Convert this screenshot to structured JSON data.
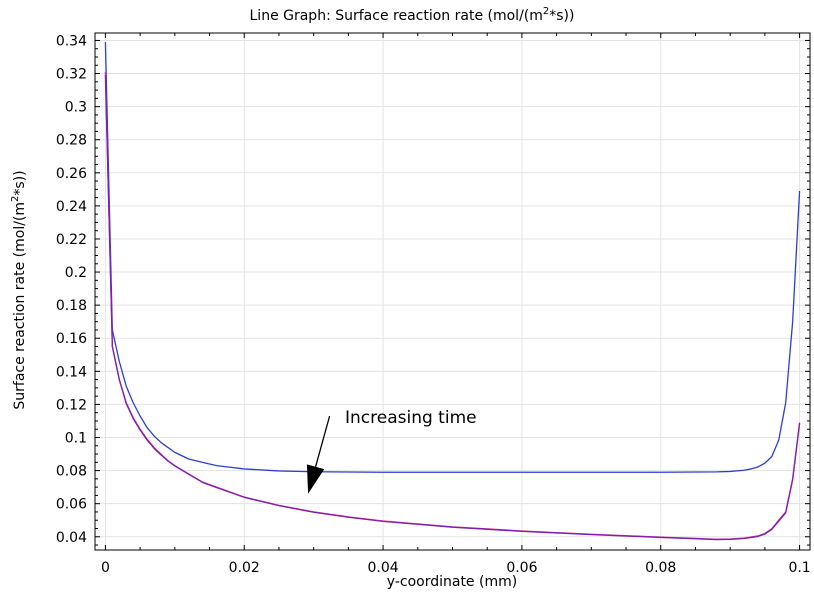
{
  "chart_data": {
    "type": "line",
    "title_main": "Line Graph: Surface reaction rate (mol/(m",
    "title_sup": "2",
    "title_tail": "*s))",
    "xlabel": "y-coordinate (mm)",
    "ylabel_main": "Surface reaction rate (mol/(m",
    "ylabel_sup": "2",
    "ylabel_tail": "*s))",
    "xlim": [
      -0.0015,
      0.1015
    ],
    "ylim": [
      0.032,
      0.3445
    ],
    "xticks": [
      0,
      0.02,
      0.04,
      0.06,
      0.08,
      0.1
    ],
    "xtick_labels": [
      "0",
      "0.02",
      "0.04",
      "0.06",
      "0.08",
      "0.1"
    ],
    "yticks": [
      0.04,
      0.06,
      0.08,
      0.1,
      0.12,
      0.14,
      0.16,
      0.18,
      0.2,
      0.22,
      0.24,
      0.26,
      0.28,
      0.3,
      0.32,
      0.34
    ],
    "ytick_labels": [
      "0.04",
      "0.06",
      "0.08",
      "0.1",
      "0.12",
      "0.14",
      "0.16",
      "0.18",
      "0.2",
      "0.22",
      "0.24",
      "0.26",
      "0.28",
      "0.3",
      "0.32",
      "0.34"
    ],
    "grid": true,
    "annotation": {
      "text": "Increasing time",
      "arrow_from": [
        0.0323,
        0.113
      ],
      "arrow_to": [
        0.0292,
        0.066
      ]
    },
    "series": [
      {
        "color": "#2a3fcf",
        "x": [
          0,
          0.001,
          0.002,
          0.003,
          0.004,
          0.005,
          0.006,
          0.007,
          0.008,
          0.009,
          0.01,
          0.012,
          0.014,
          0.016,
          0.018,
          0.02,
          0.025,
          0.03,
          0.04,
          0.05,
          0.06,
          0.07,
          0.08,
          0.088,
          0.09,
          0.092,
          0.093,
          0.094,
          0.095,
          0.096,
          0.097,
          0.098,
          0.099,
          0.1
        ],
        "y": [
          0.339,
          0.165,
          0.146,
          0.131,
          0.121,
          0.113,
          0.106,
          0.101,
          0.097,
          0.094,
          0.091,
          0.087,
          0.085,
          0.083,
          0.082,
          0.081,
          0.0798,
          0.0793,
          0.079,
          0.079,
          0.079,
          0.079,
          0.079,
          0.0792,
          0.0795,
          0.0802,
          0.081,
          0.0822,
          0.0845,
          0.0885,
          0.0985,
          0.121,
          0.17,
          0.249
        ]
      },
      {
        "color": "#d8208e",
        "x": [
          0,
          0.001,
          0.002,
          0.003,
          0.004,
          0.005,
          0.006,
          0.007,
          0.008,
          0.009,
          0.01,
          0.012,
          0.014,
          0.016,
          0.018,
          0.02,
          0.025,
          0.03,
          0.035,
          0.04,
          0.05,
          0.06,
          0.07,
          0.08,
          0.085,
          0.088,
          0.09,
          0.092,
          0.094,
          0.095,
          0.096,
          0.097,
          0.098,
          0.099,
          0.1
        ],
        "y": [
          0.321,
          0.155,
          0.135,
          0.121,
          0.112,
          0.105,
          0.099,
          0.094,
          0.09,
          0.086,
          0.083,
          0.078,
          0.073,
          0.07,
          0.067,
          0.064,
          0.059,
          0.055,
          0.052,
          0.0495,
          0.046,
          0.0435,
          0.0415,
          0.0398,
          0.039,
          0.0385,
          0.0386,
          0.0392,
          0.0405,
          0.042,
          0.0448,
          0.05,
          0.055,
          0.075,
          0.109
        ]
      },
      {
        "color": "#7a1fb0",
        "x": [
          0,
          0.001,
          0.002,
          0.003,
          0.004,
          0.005,
          0.006,
          0.007,
          0.008,
          0.009,
          0.01,
          0.012,
          0.014,
          0.016,
          0.018,
          0.02,
          0.025,
          0.03,
          0.035,
          0.04,
          0.05,
          0.06,
          0.07,
          0.08,
          0.085,
          0.088,
          0.09,
          0.092,
          0.094,
          0.095,
          0.096,
          0.097,
          0.098,
          0.099,
          0.1
        ],
        "y": [
          0.319,
          0.155,
          0.135,
          0.1205,
          0.1115,
          0.1045,
          0.0985,
          0.0935,
          0.0895,
          0.0858,
          0.0828,
          0.0778,
          0.0728,
          0.0698,
          0.0668,
          0.0638,
          0.0588,
          0.0548,
          0.0518,
          0.0493,
          0.0458,
          0.0433,
          0.0413,
          0.0396,
          0.0388,
          0.0383,
          0.0384,
          0.039,
          0.0402,
          0.0416,
          0.0445,
          0.0495,
          0.0545,
          0.0745,
          0.1085
        ]
      }
    ]
  }
}
